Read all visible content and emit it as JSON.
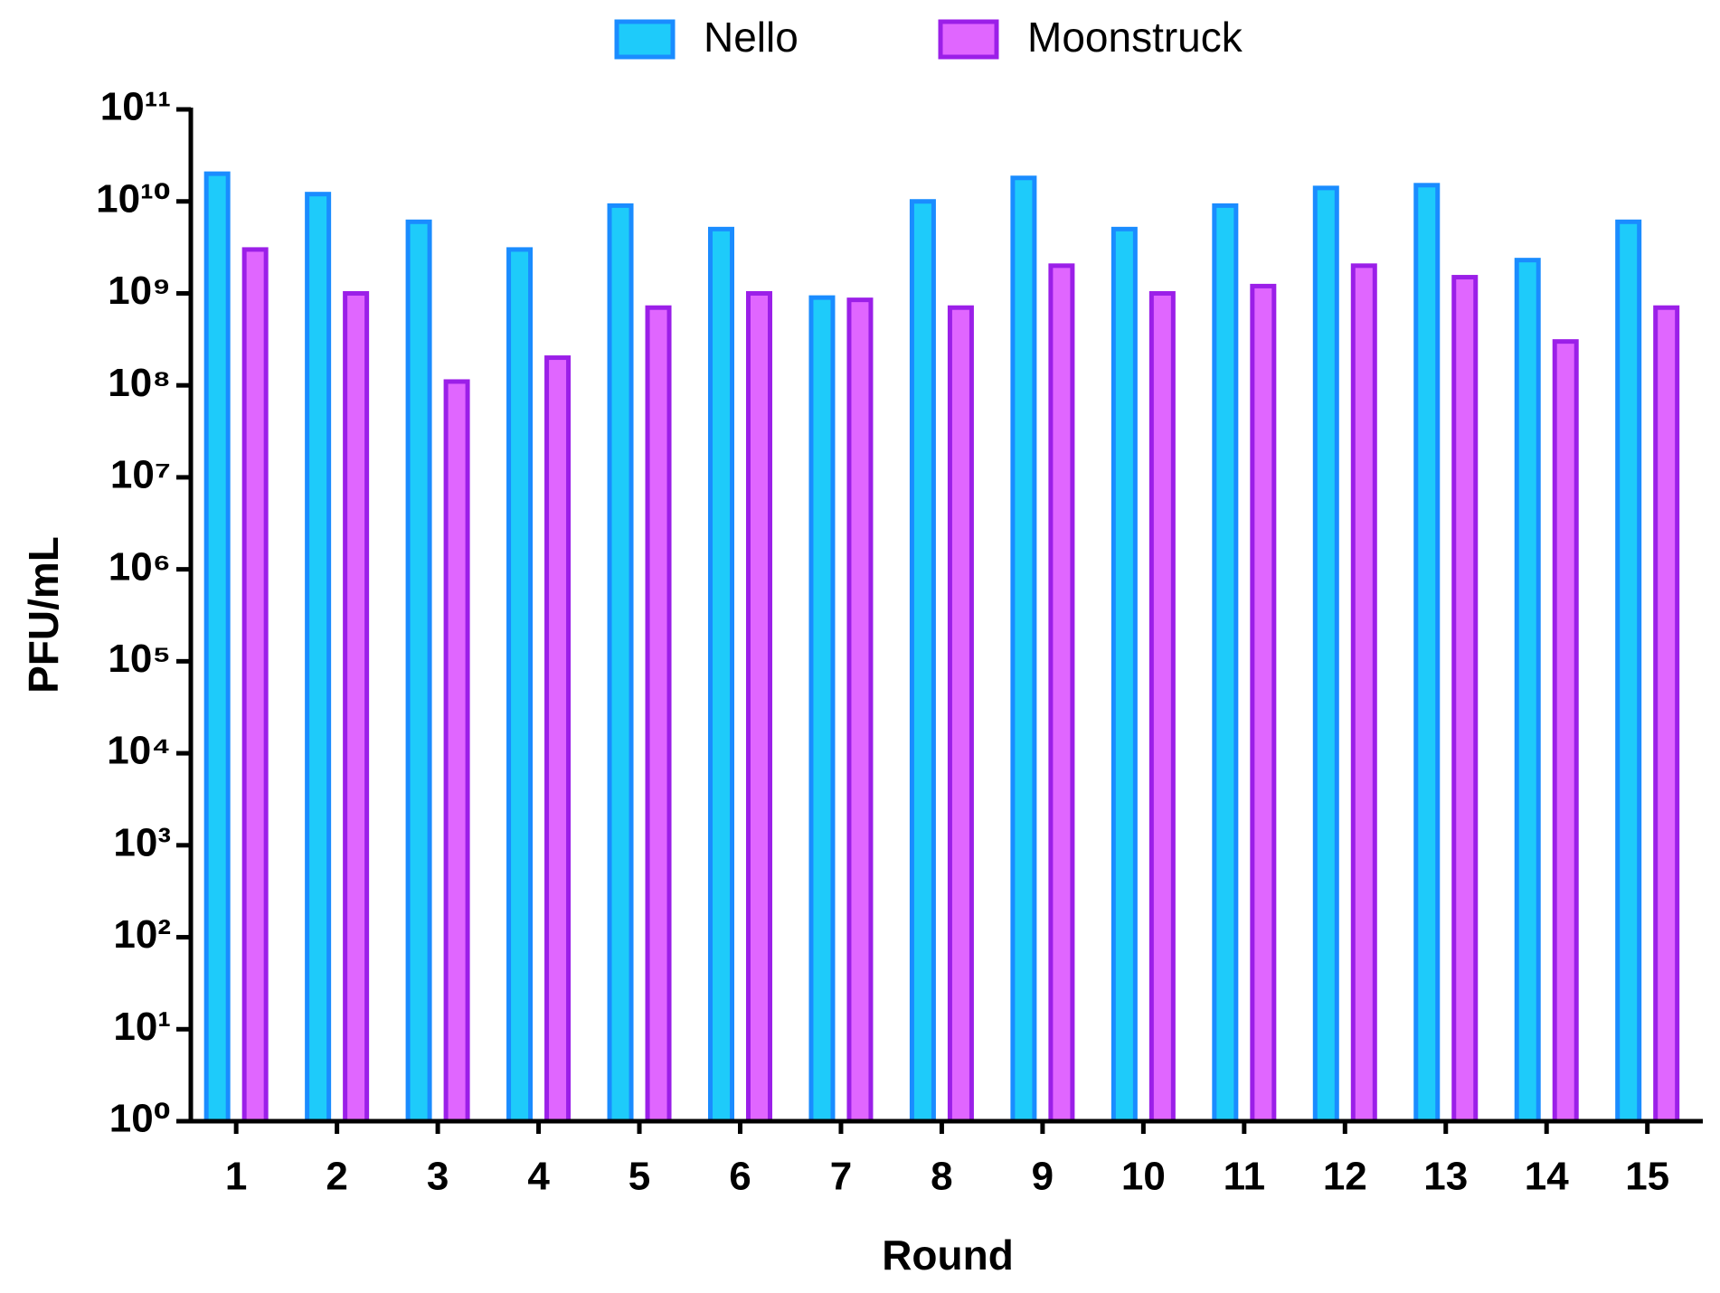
{
  "chart_data": {
    "type": "bar",
    "x_label": "Round",
    "y_label": "PFU/mL",
    "categories": [
      "1",
      "2",
      "3",
      "4",
      "5",
      "6",
      "7",
      "8",
      "9",
      "10",
      "11",
      "12",
      "13",
      "14",
      "15"
    ],
    "series": [
      {
        "name": "Nello",
        "color": "#1ecbfa",
        "edge_color": "#1a8cff",
        "values": [
          20000000000,
          12000000000,
          6000000000,
          3000000000,
          9000000000,
          5000000000,
          900000000,
          10000000000,
          18000000000,
          5000000000,
          9000000000,
          14000000000,
          15000000000,
          2300000000,
          6000000000
        ]
      },
      {
        "name": "Moonstruck",
        "color": "#e066ff",
        "edge_color": "#9b1fe8",
        "values": [
          3000000000,
          1000000000,
          110000000,
          200000000,
          700000000,
          1000000000,
          850000000,
          700000000,
          2000000000,
          1000000000,
          1200000000,
          2000000000,
          1500000000,
          300000000,
          700000000
        ]
      }
    ],
    "y_scale": "log",
    "ylim": [
      1,
      100000000000
    ],
    "yticks": [
      {
        "value": 1,
        "label": "10⁰"
      },
      {
        "value": 10,
        "label": "10¹"
      },
      {
        "value": 100,
        "label": "10²"
      },
      {
        "value": 1000,
        "label": "10³"
      },
      {
        "value": 10000,
        "label": "10⁴"
      },
      {
        "value": 100000,
        "label": "10⁵"
      },
      {
        "value": 1000000,
        "label": "10⁶"
      },
      {
        "value": 10000000,
        "label": "10⁷"
      },
      {
        "value": 100000000,
        "label": "10⁸"
      },
      {
        "value": 1000000000,
        "label": "10⁹"
      },
      {
        "value": 10000000000,
        "label": "10¹⁰"
      },
      {
        "value": 100000000000,
        "label": "10¹¹"
      }
    ],
    "legend": "top",
    "grid": false
  }
}
